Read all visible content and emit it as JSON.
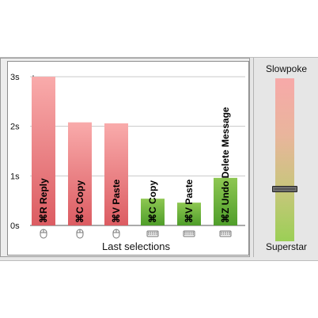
{
  "chart_data": {
    "type": "bar",
    "xlabel": "Last selections",
    "y_ticks": [
      "0s",
      "1s",
      "2s",
      "3s"
    ],
    "ylim": [
      0,
      3
    ],
    "grid": true,
    "categories": [
      "⌘R  Reply",
      "⌘C  Copy",
      "⌘V  Paste",
      "⌘C  Copy",
      "⌘V  Paste",
      "⌘Z  Undo Delete Message"
    ],
    "values": [
      3.0,
      2.08,
      2.06,
      0.54,
      0.46,
      0.96
    ],
    "input_icons": [
      "mouse-icon",
      "mouse-icon",
      "mouse-icon",
      "keyboard-icon",
      "keyboard-icon",
      "keyboard-icon"
    ],
    "colors": {
      "mouse_top": "#f9abab",
      "mouse_bottom": "#dc5c62",
      "keyboard_top": "#8ec752",
      "keyboard_bottom": "#4f9e2a"
    }
  },
  "slider": {
    "top_label": "Slowpoke",
    "bottom_label": "Superstar",
    "value": 0.32
  }
}
